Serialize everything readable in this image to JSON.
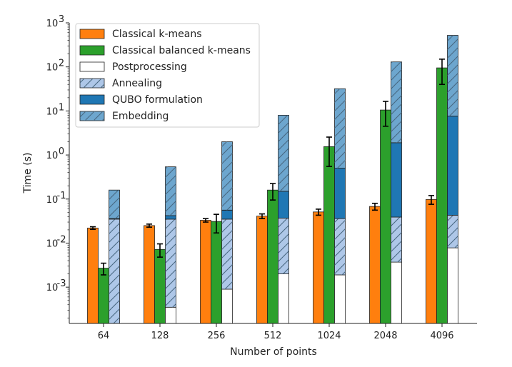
{
  "chart_data": {
    "type": "bar",
    "xlabel": "Number of points",
    "ylabel": "Time (s)",
    "yscale": "log",
    "ylim": [
      0.00015,
      1000
    ],
    "categories": [
      "64",
      "128",
      "256",
      "512",
      "1024",
      "2048",
      "4096"
    ],
    "y_ticks": [
      {
        "value": 0.001,
        "base": "10",
        "exp": "-3"
      },
      {
        "value": 0.01,
        "base": "10",
        "exp": "-2"
      },
      {
        "value": 0.1,
        "base": "10",
        "exp": "-1"
      },
      {
        "value": 1,
        "base": "10",
        "exp": "0"
      },
      {
        "value": 10,
        "base": "10",
        "exp": "1"
      },
      {
        "value": 100,
        "base": "10",
        "exp": "2"
      },
      {
        "value": 1000,
        "base": "10",
        "exp": "3"
      }
    ],
    "grid": false,
    "legend_position": "top-left",
    "series": [
      {
        "name": "Classical k-means",
        "color": "#ff7f0e",
        "values": [
          0.022,
          0.025,
          0.033,
          0.041,
          0.051,
          0.068,
          0.098
        ],
        "errors": [
          0.0015,
          0.002,
          0.003,
          0.005,
          0.008,
          0.012,
          0.022
        ]
      },
      {
        "name": "Classical balanced k-means",
        "color": "#2ca02c",
        "values": [
          0.0027,
          0.0072,
          0.031,
          0.16,
          1.55,
          10.5,
          95
        ],
        "errors": [
          0.0008,
          0.0024,
          0.014,
          0.065,
          1.0,
          6.0,
          55
        ]
      },
      {
        "name": "Postprocessing",
        "color": "#ffffff",
        "values": [
          0,
          0.00035,
          0.0009,
          0.002,
          0.0019,
          0.0037,
          0.0078
        ]
      },
      {
        "name": "Annealing",
        "color": "#aec7e8",
        "hatch": true,
        "values": [
          0.035,
          0.035,
          0.035,
          0.037,
          0.036,
          0.039,
          0.043
        ]
      },
      {
        "name": "QUBO formulation",
        "color": "#1f77b4",
        "values": [
          0.036,
          0.042,
          0.056,
          0.15,
          0.5,
          1.9,
          7.6
        ]
      },
      {
        "name": "Embedding",
        "color": "#1f77b4",
        "hatch": true,
        "values": [
          0.16,
          0.54,
          2.0,
          8.0,
          32,
          130,
          520
        ]
      }
    ]
  }
}
